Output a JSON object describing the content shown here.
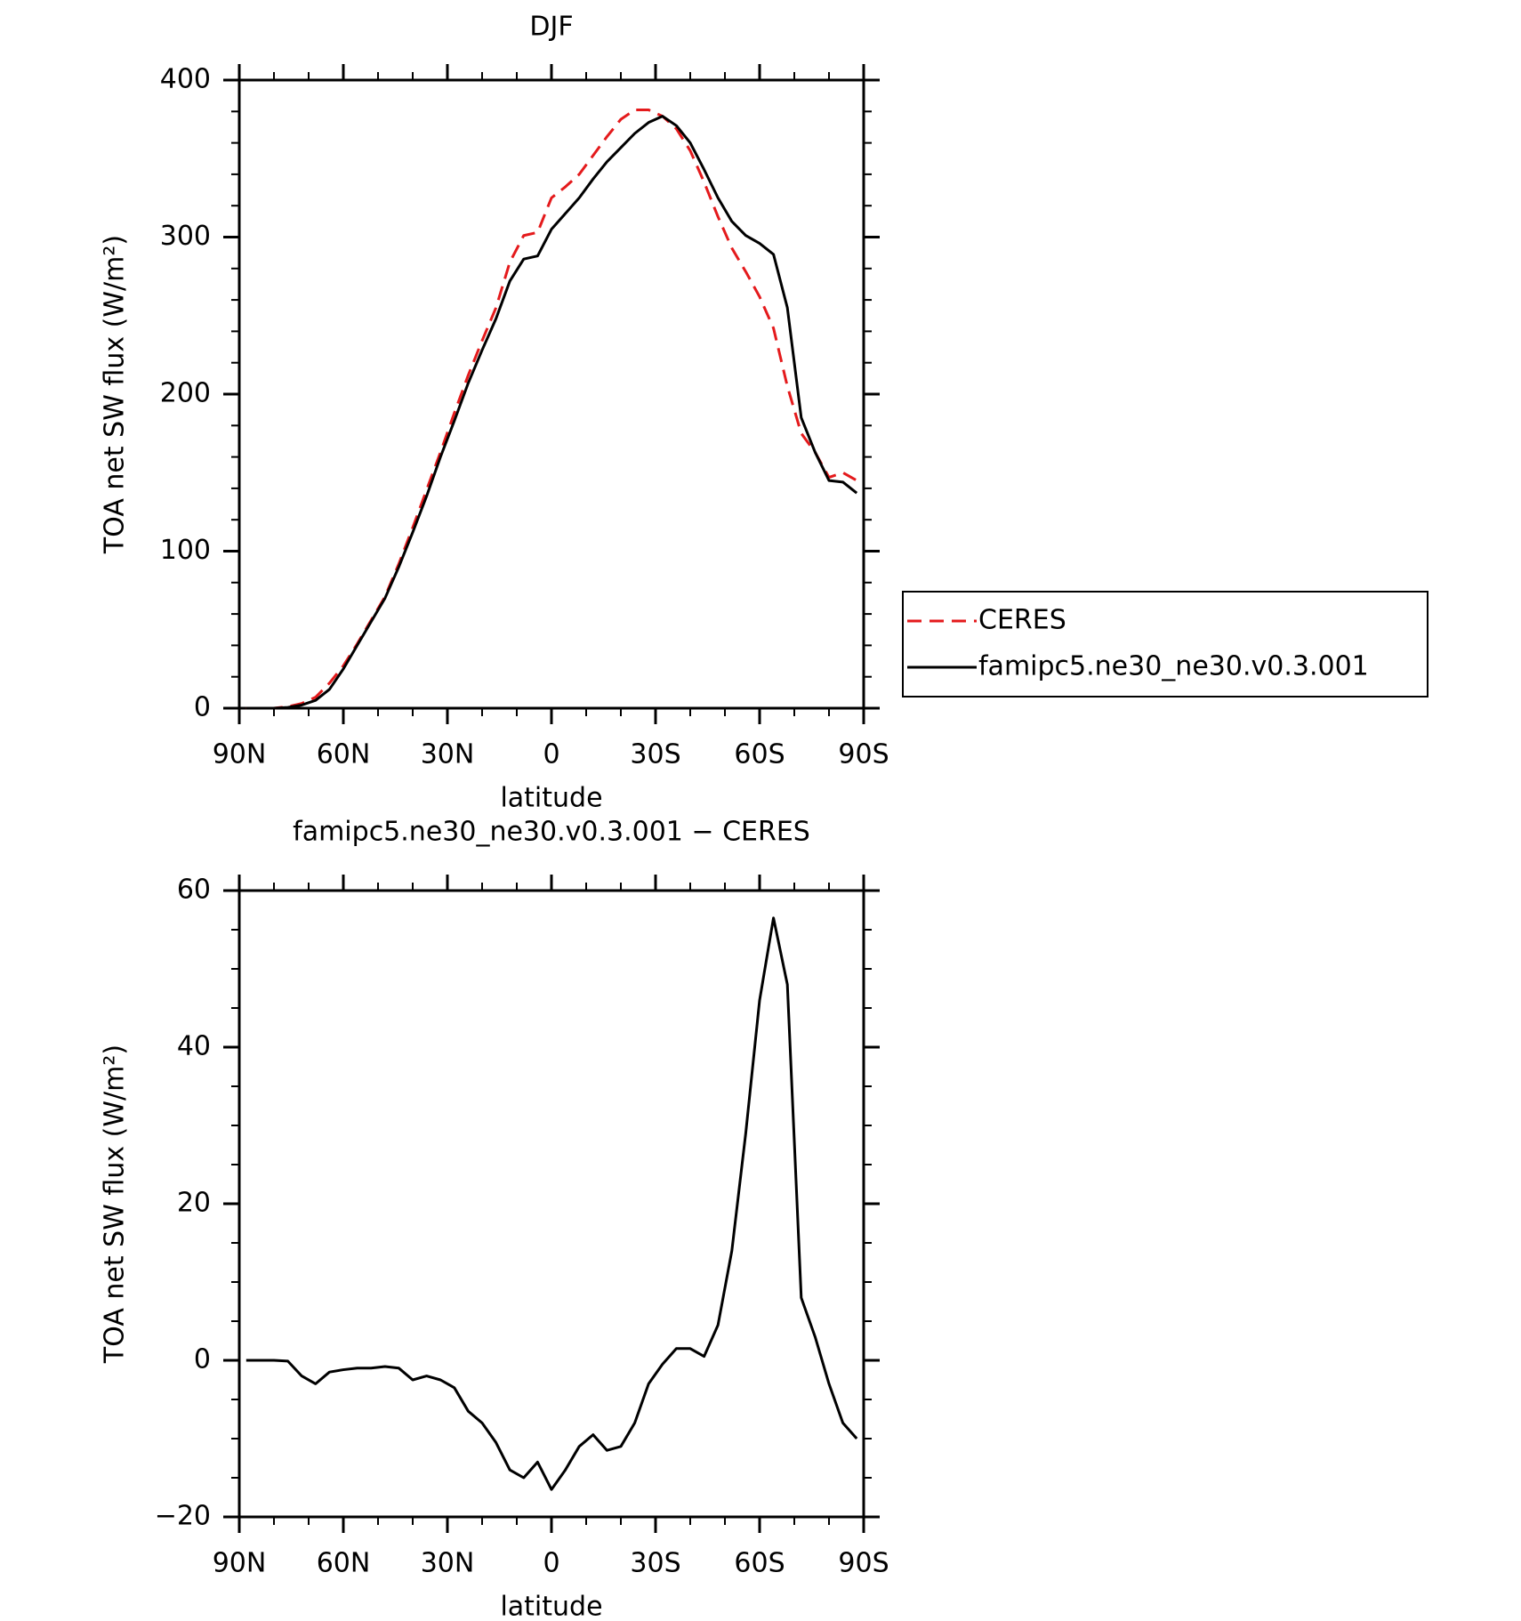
{
  "chart_data": [
    {
      "type": "line",
      "title": "DJF",
      "xlabel": "latitude",
      "ylabel": "TOA net SW flux (W/m²)",
      "x": [
        88,
        84,
        80,
        76,
        72,
        68,
        64,
        60,
        56,
        52,
        48,
        44,
        40,
        36,
        32,
        28,
        24,
        20,
        16,
        12,
        8,
        4,
        0,
        -4,
        -8,
        -12,
        -16,
        -20,
        -24,
        -28,
        -32,
        -36,
        -40,
        -44,
        -48,
        -52,
        -56,
        -60,
        -64,
        -68,
        -72,
        -76,
        -80,
        -84,
        -88
      ],
      "series": [
        {
          "name": "CERES",
          "color": "#e41a1c",
          "dashed": true,
          "values": [
            0,
            0,
            0,
            1,
            3,
            7,
            16,
            27,
            41,
            56,
            71,
            92,
            115,
            139,
            163,
            188,
            212,
            234,
            255,
            284,
            301,
            303,
            325,
            332,
            340,
            352,
            364,
            375,
            381,
            381,
            377,
            369,
            355,
            335,
            313,
            293,
            278,
            262,
            242,
            205,
            175,
            163,
            147,
            150,
            145
          ]
        },
        {
          "name": "famipc5.ne30_ne30.v0.3.001",
          "color": "#000000",
          "dashed": false,
          "values": [
            0,
            0,
            0,
            0.5,
            2,
            5,
            12,
            25,
            40,
            55,
            70,
            90,
            112,
            135,
            160,
            183,
            207,
            228,
            248,
            272,
            286,
            288,
            305,
            315,
            325,
            337,
            348,
            357,
            366,
            373,
            377,
            371,
            360,
            343,
            325,
            310,
            301,
            296,
            289,
            255,
            185,
            163,
            145,
            144,
            137
          ]
        }
      ],
      "xlim": [
        90,
        -90
      ],
      "xticks": [
        {
          "value": 90,
          "label": "90N"
        },
        {
          "value": 60,
          "label": "60N"
        },
        {
          "value": 30,
          "label": "30N"
        },
        0,
        {
          "value": -30,
          "label": "30S"
        },
        {
          "value": -60,
          "label": "60S"
        },
        {
          "value": -90,
          "label": "90S"
        }
      ],
      "x_minor_per_major": 3,
      "ylim": [
        0,
        400
      ],
      "yticks": [
        0,
        100,
        200,
        300,
        400
      ],
      "y_minor_per_major": 5,
      "legend": "right"
    },
    {
      "type": "line",
      "title": "famipc5.ne30_ne30.v0.3.001 − CERES",
      "xlabel": "latitude",
      "ylabel": "TOA net SW flux (W/m²)",
      "x": [
        88,
        84,
        80,
        76,
        72,
        68,
        64,
        60,
        56,
        52,
        48,
        44,
        40,
        36,
        32,
        28,
        24,
        20,
        16,
        12,
        8,
        4,
        0,
        -4,
        -8,
        -12,
        -16,
        -20,
        -24,
        -28,
        -32,
        -36,
        -40,
        -44,
        -48,
        -52,
        -56,
        -60,
        -64,
        -68,
        -72,
        -76,
        -80,
        -84,
        -88
      ],
      "values": [
        0,
        0,
        0,
        -0.1,
        -2,
        -3,
        -1.5,
        -1.2,
        -1,
        -1,
        -0.8,
        -1,
        -2.5,
        -2,
        -2.5,
        -3.5,
        -6.5,
        -8,
        -10.5,
        -14,
        -15,
        -13,
        -16.5,
        -14,
        -11,
        -9.5,
        -11.5,
        -11,
        -8,
        -3,
        -0.5,
        1.5,
        1.5,
        0.5,
        4.5,
        14,
        29,
        46,
        56.5,
        48,
        8,
        3,
        -3,
        -8,
        -10
      ],
      "color": "#000000",
      "xlim": [
        90,
        -90
      ],
      "xticks": [
        {
          "value": 90,
          "label": "90N"
        },
        {
          "value": 60,
          "label": "60N"
        },
        {
          "value": 30,
          "label": "30N"
        },
        0,
        {
          "value": -30,
          "label": "30S"
        },
        {
          "value": -60,
          "label": "60S"
        },
        {
          "value": -90,
          "label": "90S"
        }
      ],
      "x_minor_per_major": 3,
      "ylim": [
        -20,
        60
      ],
      "yticks": [
        {
          "value": -20,
          "label": "−20"
        },
        0,
        20,
        40,
        60
      ],
      "y_minor_per_major": 4
    }
  ]
}
